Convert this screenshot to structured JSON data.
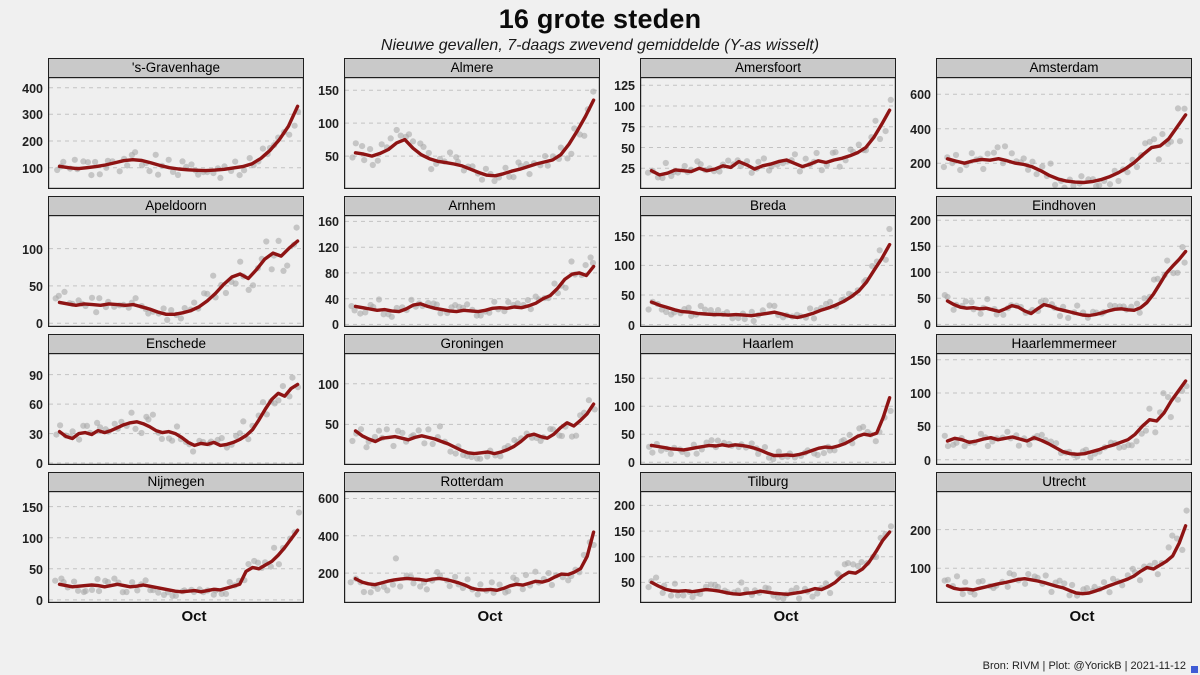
{
  "title": "16 grote steden",
  "subtitle": "Nieuwe gevallen, 7-daags zwevend gemiddelde (Y-as wisselt)",
  "footer": "Bron: RIVM | Plot: @YorickB |  2021-11-12",
  "x_axis_label": "Oct",
  "colors": {
    "background": "#f0f0f0",
    "plot_bg": "#efefef",
    "panel_header": "#c9c9c9",
    "border": "#1f1f1f",
    "grid": "#c3c3c3",
    "scatter": "#a9a9a9",
    "line": "#8e1414"
  },
  "chart_data": [
    {
      "type": "line+scatter",
      "title": "'s-Gravenhage",
      "xlabel": "Oct",
      "yticks": [
        100,
        200,
        300,
        400
      ],
      "ylim": [
        20,
        440
      ],
      "line": [
        105,
        100,
        96,
        100,
        104,
        110,
        118,
        126,
        130,
        127,
        118,
        108,
        100,
        95,
        92,
        90,
        89,
        91,
        94,
        99,
        104,
        114,
        135,
        165,
        205,
        255,
        330
      ]
    },
    {
      "type": "line+scatter",
      "title": "Almere",
      "xlabel": "Oct",
      "yticks": [
        50,
        100,
        150
      ],
      "ylim": [
        0,
        170
      ],
      "line": [
        55,
        53,
        50,
        54,
        60,
        70,
        75,
        62,
        52,
        46,
        42,
        40,
        38,
        35,
        30,
        25,
        21,
        20,
        23,
        27,
        30,
        34,
        38,
        41,
        44,
        52,
        68,
        88,
        110,
        135
      ]
    },
    {
      "type": "line+scatter",
      "title": "Amersfoort",
      "xlabel": "Oct",
      "yticks": [
        25,
        50,
        75,
        100,
        125
      ],
      "ylim": [
        0,
        135
      ],
      "line": [
        22,
        17,
        19,
        23,
        22,
        21,
        25,
        22,
        24,
        28,
        26,
        33,
        29,
        24,
        28,
        30,
        33,
        35,
        31,
        27,
        30,
        34,
        32,
        35,
        37,
        40,
        44,
        50,
        62,
        78,
        95
      ]
    },
    {
      "type": "line+scatter",
      "title": "Amsterdam",
      "xlabel": "Oct",
      "yticks": [
        200,
        400,
        600
      ],
      "ylim": [
        50,
        700
      ],
      "line": [
        225,
        212,
        200,
        213,
        222,
        217,
        226,
        214,
        200,
        192,
        178,
        155,
        128,
        108,
        96,
        90,
        88,
        93,
        104,
        120,
        142,
        170,
        205,
        250,
        290,
        300,
        340,
        410,
        480
      ]
    },
    {
      "type": "line+scatter",
      "title": "Apeldoorn",
      "xlabel": "Oct",
      "yticks": [
        0,
        50,
        100
      ],
      "ylim": [
        -5,
        145
      ],
      "line": [
        28,
        26,
        24,
        26,
        25,
        24,
        26,
        25,
        24,
        25,
        22,
        19,
        15,
        12,
        12,
        14,
        17,
        22,
        30,
        40,
        52,
        62,
        66,
        60,
        72,
        86,
        94,
        90,
        101,
        110
      ]
    },
    {
      "type": "line+scatter",
      "title": "Arnhem",
      "xlabel": "Oct",
      "yticks": [
        0,
        40,
        80,
        120,
        160
      ],
      "ylim": [
        -4,
        170
      ],
      "line": [
        28,
        26,
        24,
        22,
        23,
        21,
        20,
        24,
        30,
        32,
        28,
        25,
        23,
        21,
        20,
        22,
        21,
        20,
        22,
        25,
        26,
        25,
        27,
        26,
        29,
        33,
        40,
        45,
        56,
        70,
        78,
        80,
        76,
        90
      ]
    },
    {
      "type": "line+scatter",
      "title": "Breda",
      "xlabel": "Oct",
      "yticks": [
        0,
        50,
        100,
        150
      ],
      "ylim": [
        -4,
        185
      ],
      "line": [
        38,
        33,
        29,
        25,
        22,
        21,
        19,
        18,
        17,
        17,
        16,
        17,
        16,
        15,
        17,
        19,
        21,
        18,
        14,
        12,
        15,
        19,
        24,
        28,
        33,
        39,
        47,
        57,
        72,
        92,
        112,
        135
      ]
    },
    {
      "type": "line+scatter",
      "title": "Eindhoven",
      "xlabel": "Oct",
      "yticks": [
        0,
        50,
        100,
        150,
        200
      ],
      "ylim": [
        -5,
        210
      ],
      "line": [
        45,
        38,
        33,
        31,
        32,
        30,
        31,
        28,
        25,
        30,
        36,
        33,
        26,
        21,
        30,
        38,
        35,
        30,
        27,
        24,
        21,
        18,
        17,
        19,
        22,
        26,
        29,
        30,
        28,
        27,
        32,
        42,
        58,
        78,
        98,
        112,
        125,
        140
      ]
    },
    {
      "type": "line+scatter",
      "title": "Enschede",
      "xlabel": "Oct",
      "yticks": [
        0,
        30,
        60,
        90
      ],
      "ylim": [
        -2,
        112
      ],
      "line": [
        32,
        27,
        25,
        30,
        31,
        29,
        33,
        31,
        33,
        36,
        39,
        41,
        42,
        40,
        37,
        33,
        31,
        32,
        30,
        26,
        21,
        18,
        20,
        19,
        21,
        18,
        19,
        21,
        24,
        28,
        34,
        44,
        55,
        65,
        71,
        68,
        76,
        80
      ]
    },
    {
      "type": "line+scatter",
      "title": "Groningen",
      "xlabel": "Oct",
      "yticks": [
        50,
        100
      ],
      "ylim": [
        0,
        138
      ],
      "line": [
        42,
        36,
        32,
        29,
        33,
        34,
        35,
        33,
        31,
        34,
        36,
        34,
        32,
        29,
        26,
        22,
        18,
        15,
        14,
        15,
        16,
        14,
        16,
        19,
        23,
        29,
        36,
        38,
        35,
        33,
        38,
        46,
        52,
        48,
        55,
        63,
        75
      ]
    },
    {
      "type": "line+scatter",
      "title": "Haarlem",
      "xlabel": "Oct",
      "yticks": [
        0,
        50,
        100,
        150
      ],
      "ylim": [
        -5,
        195
      ],
      "line": [
        30,
        28,
        26,
        24,
        23,
        22,
        24,
        26,
        28,
        30,
        29,
        31,
        29,
        31,
        30,
        28,
        25,
        21,
        16,
        12,
        12,
        13,
        12,
        14,
        17,
        21,
        25,
        27,
        26,
        29,
        33,
        39,
        46,
        50,
        48,
        52,
        80,
        115
      ]
    },
    {
      "type": "line+scatter",
      "title": "Haarlemmermeer",
      "xlabel": "Oct",
      "yticks": [
        0,
        50,
        100,
        150
      ],
      "ylim": [
        -8,
        160
      ],
      "line": [
        28,
        32,
        30,
        26,
        28,
        31,
        33,
        30,
        32,
        34,
        31,
        28,
        33,
        29,
        24,
        18,
        12,
        9,
        8,
        9,
        12,
        15,
        19,
        22,
        26,
        30,
        38,
        50,
        60,
        58,
        70,
        88,
        103,
        118
      ]
    },
    {
      "type": "line+scatter",
      "title": "Nijmegen",
      "xlabel": "Oct",
      "yticks": [
        0,
        50,
        100,
        150
      ],
      "ylim": [
        -5,
        175
      ],
      "line": [
        25,
        23,
        21,
        22,
        23,
        24,
        23,
        21,
        23,
        25,
        23,
        21,
        22,
        24,
        22,
        20,
        18,
        16,
        14,
        13,
        14,
        15,
        13,
        15,
        17,
        16,
        19,
        22,
        25,
        46,
        52,
        50,
        56,
        62,
        72,
        84,
        98,
        112
      ]
    },
    {
      "type": "line+scatter",
      "title": "Rotterdam",
      "xlabel": "Oct",
      "yticks": [
        200,
        400,
        600
      ],
      "ylim": [
        40,
        640
      ],
      "line": [
        170,
        152,
        143,
        138,
        147,
        157,
        164,
        168,
        172,
        168,
        166,
        161,
        168,
        172,
        166,
        158,
        148,
        136,
        120,
        112,
        110,
        113,
        108,
        118,
        132,
        140,
        136,
        146,
        156,
        152,
        162,
        180,
        195,
        192,
        205,
        225,
        290,
        420
      ]
    },
    {
      "type": "line+scatter",
      "title": "Tilburg",
      "xlabel": "Oct",
      "yticks": [
        50,
        100,
        150,
        200
      ],
      "ylim": [
        10,
        228
      ],
      "line": [
        50,
        43,
        37,
        34,
        33,
        34,
        32,
        34,
        36,
        35,
        33,
        30,
        28,
        27,
        29,
        30,
        33,
        31,
        29,
        28,
        27,
        29,
        31,
        34,
        38,
        36,
        42,
        50,
        62,
        70,
        68,
        76,
        90,
        110,
        132,
        148
      ]
    },
    {
      "type": "line+scatter",
      "title": "Utrecht",
      "xlabel": "Oct",
      "yticks": [
        100,
        200
      ],
      "ylim": [
        10,
        300
      ],
      "line": [
        55,
        48,
        45,
        46,
        44,
        48,
        52,
        56,
        60,
        63,
        67,
        71,
        73,
        70,
        67,
        63,
        58,
        53,
        49,
        42,
        36,
        34,
        36,
        41,
        47,
        54,
        60,
        66,
        72,
        80,
        92,
        102,
        98,
        108,
        118,
        132,
        165,
        210
      ]
    }
  ]
}
